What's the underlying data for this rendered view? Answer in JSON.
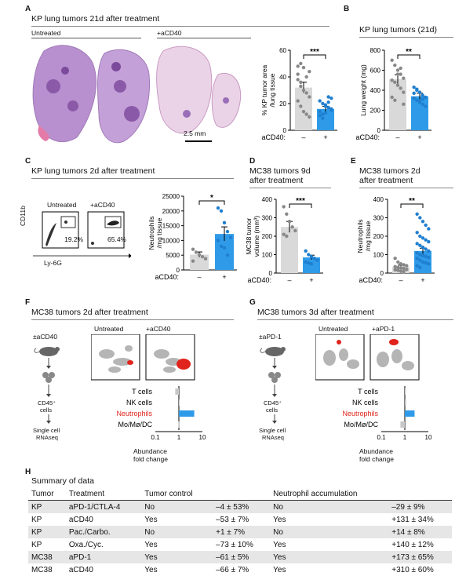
{
  "panels": {
    "A": {
      "letter": "A",
      "title": "KP lung tumors 21d after treatment",
      "label_untreated": "Untreated",
      "label_treated": "+aCD40",
      "scalebar": "2.5 mm",
      "ylabel1": "% KP tumor area",
      "ylabel2": "/lung tissue",
      "sig": "***",
      "xaxis_label": "aCD40:",
      "x_minus": "–",
      "x_plus": "+"
    },
    "B": {
      "letter": "B",
      "title": "KP lung tumors (21d)",
      "ylabel": "Lung weight (mg)",
      "sig": "**",
      "xaxis_label": "aCD40:",
      "x_minus": "–",
      "x_plus": "+"
    },
    "C": {
      "letter": "C",
      "title": "KP lung tumors 2d after treatment",
      "label_untreated": "Untreated",
      "label_treated": "+aCD40",
      "gate_untreated": "19.2%",
      "gate_treated": "65.4%",
      "flow_y": "CD11b",
      "flow_x": "Ly-6G",
      "ylabel1": "Neutrophils",
      "ylabel2": "/mg tissue",
      "sig": "*",
      "xaxis_label": "aCD40:",
      "x_minus": "–",
      "x_plus": "+"
    },
    "D": {
      "letter": "D",
      "title1": "MC38 tumors 9d",
      "title2": "after treatment",
      "ylabel1": "MC38 tumor",
      "ylabel2": "volume (mm³)",
      "sig": "***",
      "xaxis_label": "aCD40:",
      "x_minus": "–",
      "x_plus": "+"
    },
    "E": {
      "letter": "E",
      "title1": "MC38 tumors 2d",
      "title2": "after treatment",
      "ylabel1": "Neutrophils",
      "ylabel2": "/mg tissue",
      "sig": "**",
      "xaxis_label": "aCD40:",
      "x_minus": "–",
      "x_plus": "+"
    },
    "F": {
      "letter": "F",
      "title": "MC38 tumors 2d after treatment",
      "treat": "±aCD40",
      "cells": "CD45⁺",
      "cells2": "cells",
      "seq1": "Single cell",
      "seq2": "RNAseq",
      "umap_untreated": "Untreated",
      "umap_treated": "+aCD40",
      "xlabel1": "Abundance",
      "xlabel2": "fold change",
      "tick_01": "0.1",
      "tick_1": "1",
      "tick_10": "10"
    },
    "G": {
      "letter": "G",
      "title": "MC38 tumors 3d after treatment",
      "treat": "±aPD-1",
      "cells": "CD45⁺",
      "cells2": "cells",
      "seq1": "Single cell",
      "seq2": "RNAseq",
      "umap_untreated": "Untreated",
      "umap_treated": "+aPD-1",
      "xlabel1": "Abundance",
      "xlabel2": "fold change",
      "tick_01": "0.1",
      "tick_1": "1",
      "tick_10": "10"
    },
    "H": {
      "letter": "H",
      "title": "Summary of data"
    }
  },
  "colors": {
    "untreated": "#d9d9d9",
    "treated": "#2f9be8",
    "neutrophil_highlight": "#e0231c",
    "he_pink": "#e8a7c9",
    "he_purple": "#9a6fb8"
  },
  "chart_data": [
    {
      "panel": "A",
      "type": "bar",
      "categories": [
        "–",
        "+"
      ],
      "ylim": [
        0,
        60
      ],
      "yticks": [
        0,
        20,
        40,
        60
      ],
      "values": [
        32,
        16
      ],
      "errors": [
        4,
        2
      ],
      "points": [
        [
          42,
          50,
          47,
          40,
          44,
          38,
          33,
          30,
          28,
          25,
          22,
          18,
          14,
          12,
          10,
          48,
          36
        ],
        [
          22,
          20,
          18,
          25,
          16,
          14,
          12,
          19,
          17,
          15,
          11,
          9,
          13,
          21,
          24
        ]
      ]
    },
    {
      "panel": "B",
      "type": "bar",
      "categories": [
        "–",
        "+"
      ],
      "ylim": [
        0,
        800
      ],
      "yticks": [
        0,
        200,
        400,
        600,
        800
      ],
      "values": [
        510,
        340
      ],
      "errors": [
        45,
        30
      ],
      "points": [
        [
          700,
          650,
          600,
          560,
          520,
          500,
          480,
          450,
          420,
          380,
          330,
          300,
          560,
          620,
          260
        ],
        [
          430,
          400,
          380,
          350,
          330,
          320,
          300,
          280,
          260,
          240,
          370,
          410,
          290,
          310
        ]
      ]
    },
    {
      "panel": "C",
      "type": "bar",
      "categories": [
        "–",
        "+"
      ],
      "ylim": [
        0,
        25000
      ],
      "yticks": [
        0,
        5000,
        10000,
        15000,
        20000,
        25000
      ],
      "values": [
        5200,
        12200
      ],
      "errors": [
        900,
        2400
      ],
      "points": [
        [
          7000,
          6000,
          5200,
          4500,
          3800,
          3000
        ],
        [
          21000,
          20000,
          16000,
          13000,
          11000,
          10000,
          8000,
          7500,
          5000
        ]
      ]
    },
    {
      "panel": "D",
      "type": "bar",
      "categories": [
        "–",
        "+"
      ],
      "ylim": [
        0,
        400
      ],
      "yticks": [
        0,
        100,
        200,
        300,
        400
      ],
      "values": [
        250,
        85
      ],
      "errors": [
        30,
        12
      ],
      "points": [
        [
          360,
          320,
          280,
          250,
          230,
          210,
          200
        ],
        [
          120,
          100,
          90,
          80,
          70,
          60,
          55,
          50
        ]
      ]
    },
    {
      "panel": "E",
      "type": "bar",
      "categories": [
        "–",
        "+"
      ],
      "ylim": [
        0,
        400
      ],
      "yticks": [
        0,
        100,
        200,
        300,
        400
      ],
      "values": [
        35,
        120
      ],
      "errors": [
        8,
        15
      ],
      "points": [
        [
          80,
          60,
          50,
          45,
          40,
          35,
          30,
          28,
          25,
          20,
          18,
          15,
          10,
          8
        ],
        [
          320,
          300,
          280,
          260,
          240,
          220,
          200,
          190,
          180,
          170,
          160,
          150,
          140,
          130,
          120,
          110,
          100,
          95,
          90,
          85,
          80,
          70,
          60,
          55,
          50,
          40,
          30
        ]
      ]
    },
    {
      "panel": "F",
      "type": "bar",
      "orientation": "horizontal",
      "xscale": "log",
      "xlim": [
        0.1,
        10
      ],
      "categories": [
        "T cells",
        "NK cells",
        "Neutrophils",
        "Mo/Mø/DC"
      ],
      "values": [
        0.7,
        1.05,
        4.5,
        0.95
      ],
      "highlight": "Neutrophils"
    },
    {
      "panel": "G",
      "type": "bar",
      "orientation": "horizontal",
      "xscale": "log",
      "xlim": [
        0.1,
        10
      ],
      "categories": [
        "T cells",
        "NK cells",
        "Neutrophils",
        "Mo/Mø/DC"
      ],
      "values": [
        1.1,
        1.15,
        2.6,
        0.65
      ],
      "highlight": "Neutrophils"
    },
    {
      "panel": "H",
      "type": "table",
      "columns": [
        "Tumor",
        "Treatment",
        "Tumor control",
        "",
        "Neutrophil accumulation",
        ""
      ],
      "rows": [
        [
          "KP",
          "aPD-1/CTLA-4",
          "No",
          "–4 ± 53%",
          "No",
          "–29 ± 9%"
        ],
        [
          "KP",
          "aCD40",
          "Yes",
          "–53 ± 7%",
          "Yes",
          "+131 ± 34%"
        ],
        [
          "KP",
          "Pac./Carbo.",
          "No",
          "+1 ± 7%",
          "No",
          "+14 ± 8%"
        ],
        [
          "KP",
          "Oxa./Cyc.",
          "Yes",
          "–73 ± 10%",
          "Yes",
          "+140 ± 12%"
        ],
        [
          "MC38",
          "aPD-1",
          "Yes",
          "–61 ± 5%",
          "Yes",
          "+173 ± 65%"
        ],
        [
          "MC38",
          "aCD40",
          "Yes",
          "–66 ± 7%",
          "Yes",
          "+310 ± 60%"
        ]
      ]
    }
  ]
}
